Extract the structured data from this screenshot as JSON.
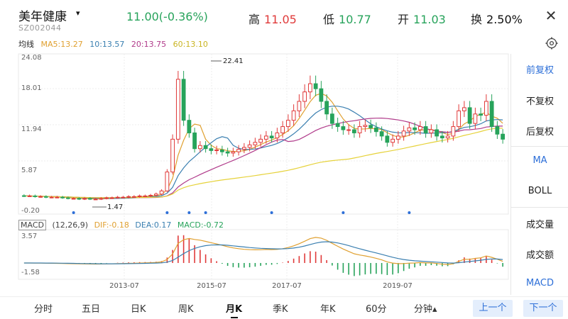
{
  "header": {
    "stock_name": "美年健康",
    "dropdown_glyph": "▾",
    "stock_code": "SZ002044",
    "price_change": "11.00(-0.36%)",
    "high_label": "高",
    "high_value": "11.05",
    "low_label": "低",
    "low_value": "10.77",
    "open_label": "开",
    "open_value": "11.03",
    "turnover_label": "换",
    "turnover_value": "2.50%",
    "close_glyph": "✕"
  },
  "ma_legend": {
    "title": "均线",
    "ma5": "MA5:13.27",
    "ma10": "10:13.57",
    "ma20": "20:13.75",
    "ma60": "60:13.10"
  },
  "colors": {
    "up": "#e03a3a",
    "down": "#27a35b",
    "ma5": "#e0a030",
    "ma10": "#3a7fb0",
    "ma20": "#b03a8a",
    "ma60": "#e6d23a",
    "accent": "#2d6fd8"
  },
  "price_axis": {
    "ticks": [
      "24.08",
      "18.01",
      "11.94",
      "5.87",
      "-0.20"
    ],
    "max_label": "22.41",
    "min_label": "1.47"
  },
  "macd_legend": {
    "tag": "MACD",
    "params": "(12,26,9)",
    "dif": "DIF:-0.18",
    "dea": "DEA:0.17",
    "macd": "MACD:-0.72"
  },
  "macd_axis": {
    "ticks": [
      "3.57",
      "-1.58"
    ]
  },
  "time_axis": {
    "labels": [
      "2013-07",
      "2015-07",
      "2017-07",
      "2019-07"
    ]
  },
  "side_panel": {
    "items": [
      "前复权",
      "不复权",
      "后复权",
      "MA",
      "BOLL",
      "成交量",
      "成交额",
      "MACD"
    ]
  },
  "tabs": {
    "items": [
      "分时",
      "五日",
      "日K",
      "周K",
      "月K",
      "季K",
      "年K",
      "60分",
      "分钟▴"
    ],
    "active_index": 4
  },
  "nav": {
    "prev": "上一个",
    "next": "下一个"
  },
  "chart_data": {
    "type": "candlestick",
    "series": [
      {
        "name": "月K",
        "values": [
          2.0,
          2.0,
          1.9,
          1.9,
          1.8,
          1.8,
          1.8,
          1.7,
          1.6,
          1.6,
          1.5,
          1.6,
          1.5,
          1.5,
          1.6,
          1.7,
          1.7,
          1.8,
          1.8,
          1.9,
          1.9,
          2.0,
          2.0,
          2.1,
          2.3,
          2.8,
          5.8,
          11.0,
          20.5,
          14.0,
          12.0,
          9.5,
          10.0,
          9.5,
          9.2,
          9.3,
          9.0,
          8.8,
          9.0,
          9.4,
          9.7,
          10.1,
          10.5,
          11.0,
          11.5,
          11.2,
          12.0,
          13.0,
          14.0,
          15.5,
          17.0,
          18.5,
          19.8,
          19.0,
          17.0,
          15.0,
          13.5,
          13.0,
          12.5,
          12.5,
          12.0,
          13.0,
          13.2,
          12.8,
          12.2,
          11.5,
          10.5,
          11.0,
          11.5,
          12.3,
          12.8,
          12.5,
          13.0,
          12.0,
          12.5,
          11.5,
          11.2,
          11.5,
          13.0,
          15.5,
          16.0,
          13.5,
          15.0,
          14.8,
          17.0,
          13.0,
          11.8,
          11.0
        ]
      }
    ],
    "price_ylim": [
      -0.2,
      24.08
    ],
    "macd_ylim": [
      -1.58,
      3.57
    ],
    "xlabel": "",
    "ylabel": ""
  }
}
